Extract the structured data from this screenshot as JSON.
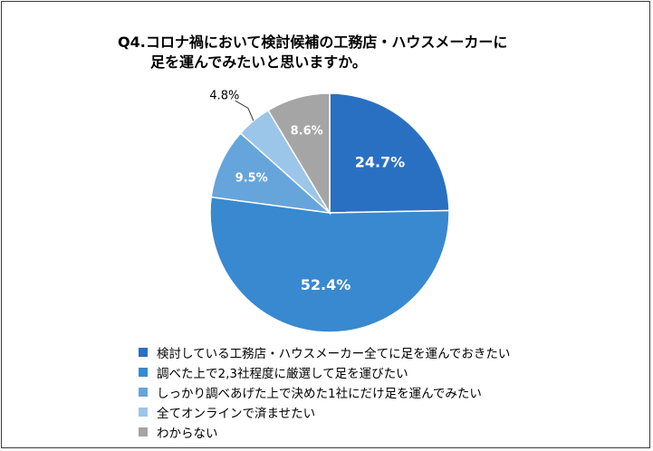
{
  "title_line1": "Q4.コロナ禍において検討候補の工務店・ハウスメーカーに",
  "title_line2": "足を運んでみたいと思いますか。",
  "chart_data": {
    "type": "pie",
    "start": "12 o'clock",
    "direction": "clockwise",
    "slices": [
      {
        "label": "検討している工務店・ハウスメーカー全てに足を運んでおきたい",
        "value": 24.7,
        "display": "24.7%",
        "color": "#2a70c2",
        "label_color": "#ffffff"
      },
      {
        "label": "調べた上で2,3社程度に厳選して足を運びたい",
        "value": 52.4,
        "display": "52.4%",
        "color": "#3889cf",
        "label_color": "#ffffff"
      },
      {
        "label": "しっかり調べあげた上で決めた1社にだけ足を運んでみたい",
        "value": 9.5,
        "display": "9.5%",
        "color": "#65a5dc",
        "label_color": "#ffffff"
      },
      {
        "label": "全てオンラインで済ませたい",
        "value": 4.8,
        "display": "4.8%",
        "color": "#9cc5ea",
        "label_color": "#000000",
        "label_outside": true
      },
      {
        "label": "わからない",
        "value": 8.6,
        "display": "8.6%",
        "color": "#a5a5a5",
        "label_color": "#ffffff"
      }
    ],
    "legend_position": "bottom"
  }
}
